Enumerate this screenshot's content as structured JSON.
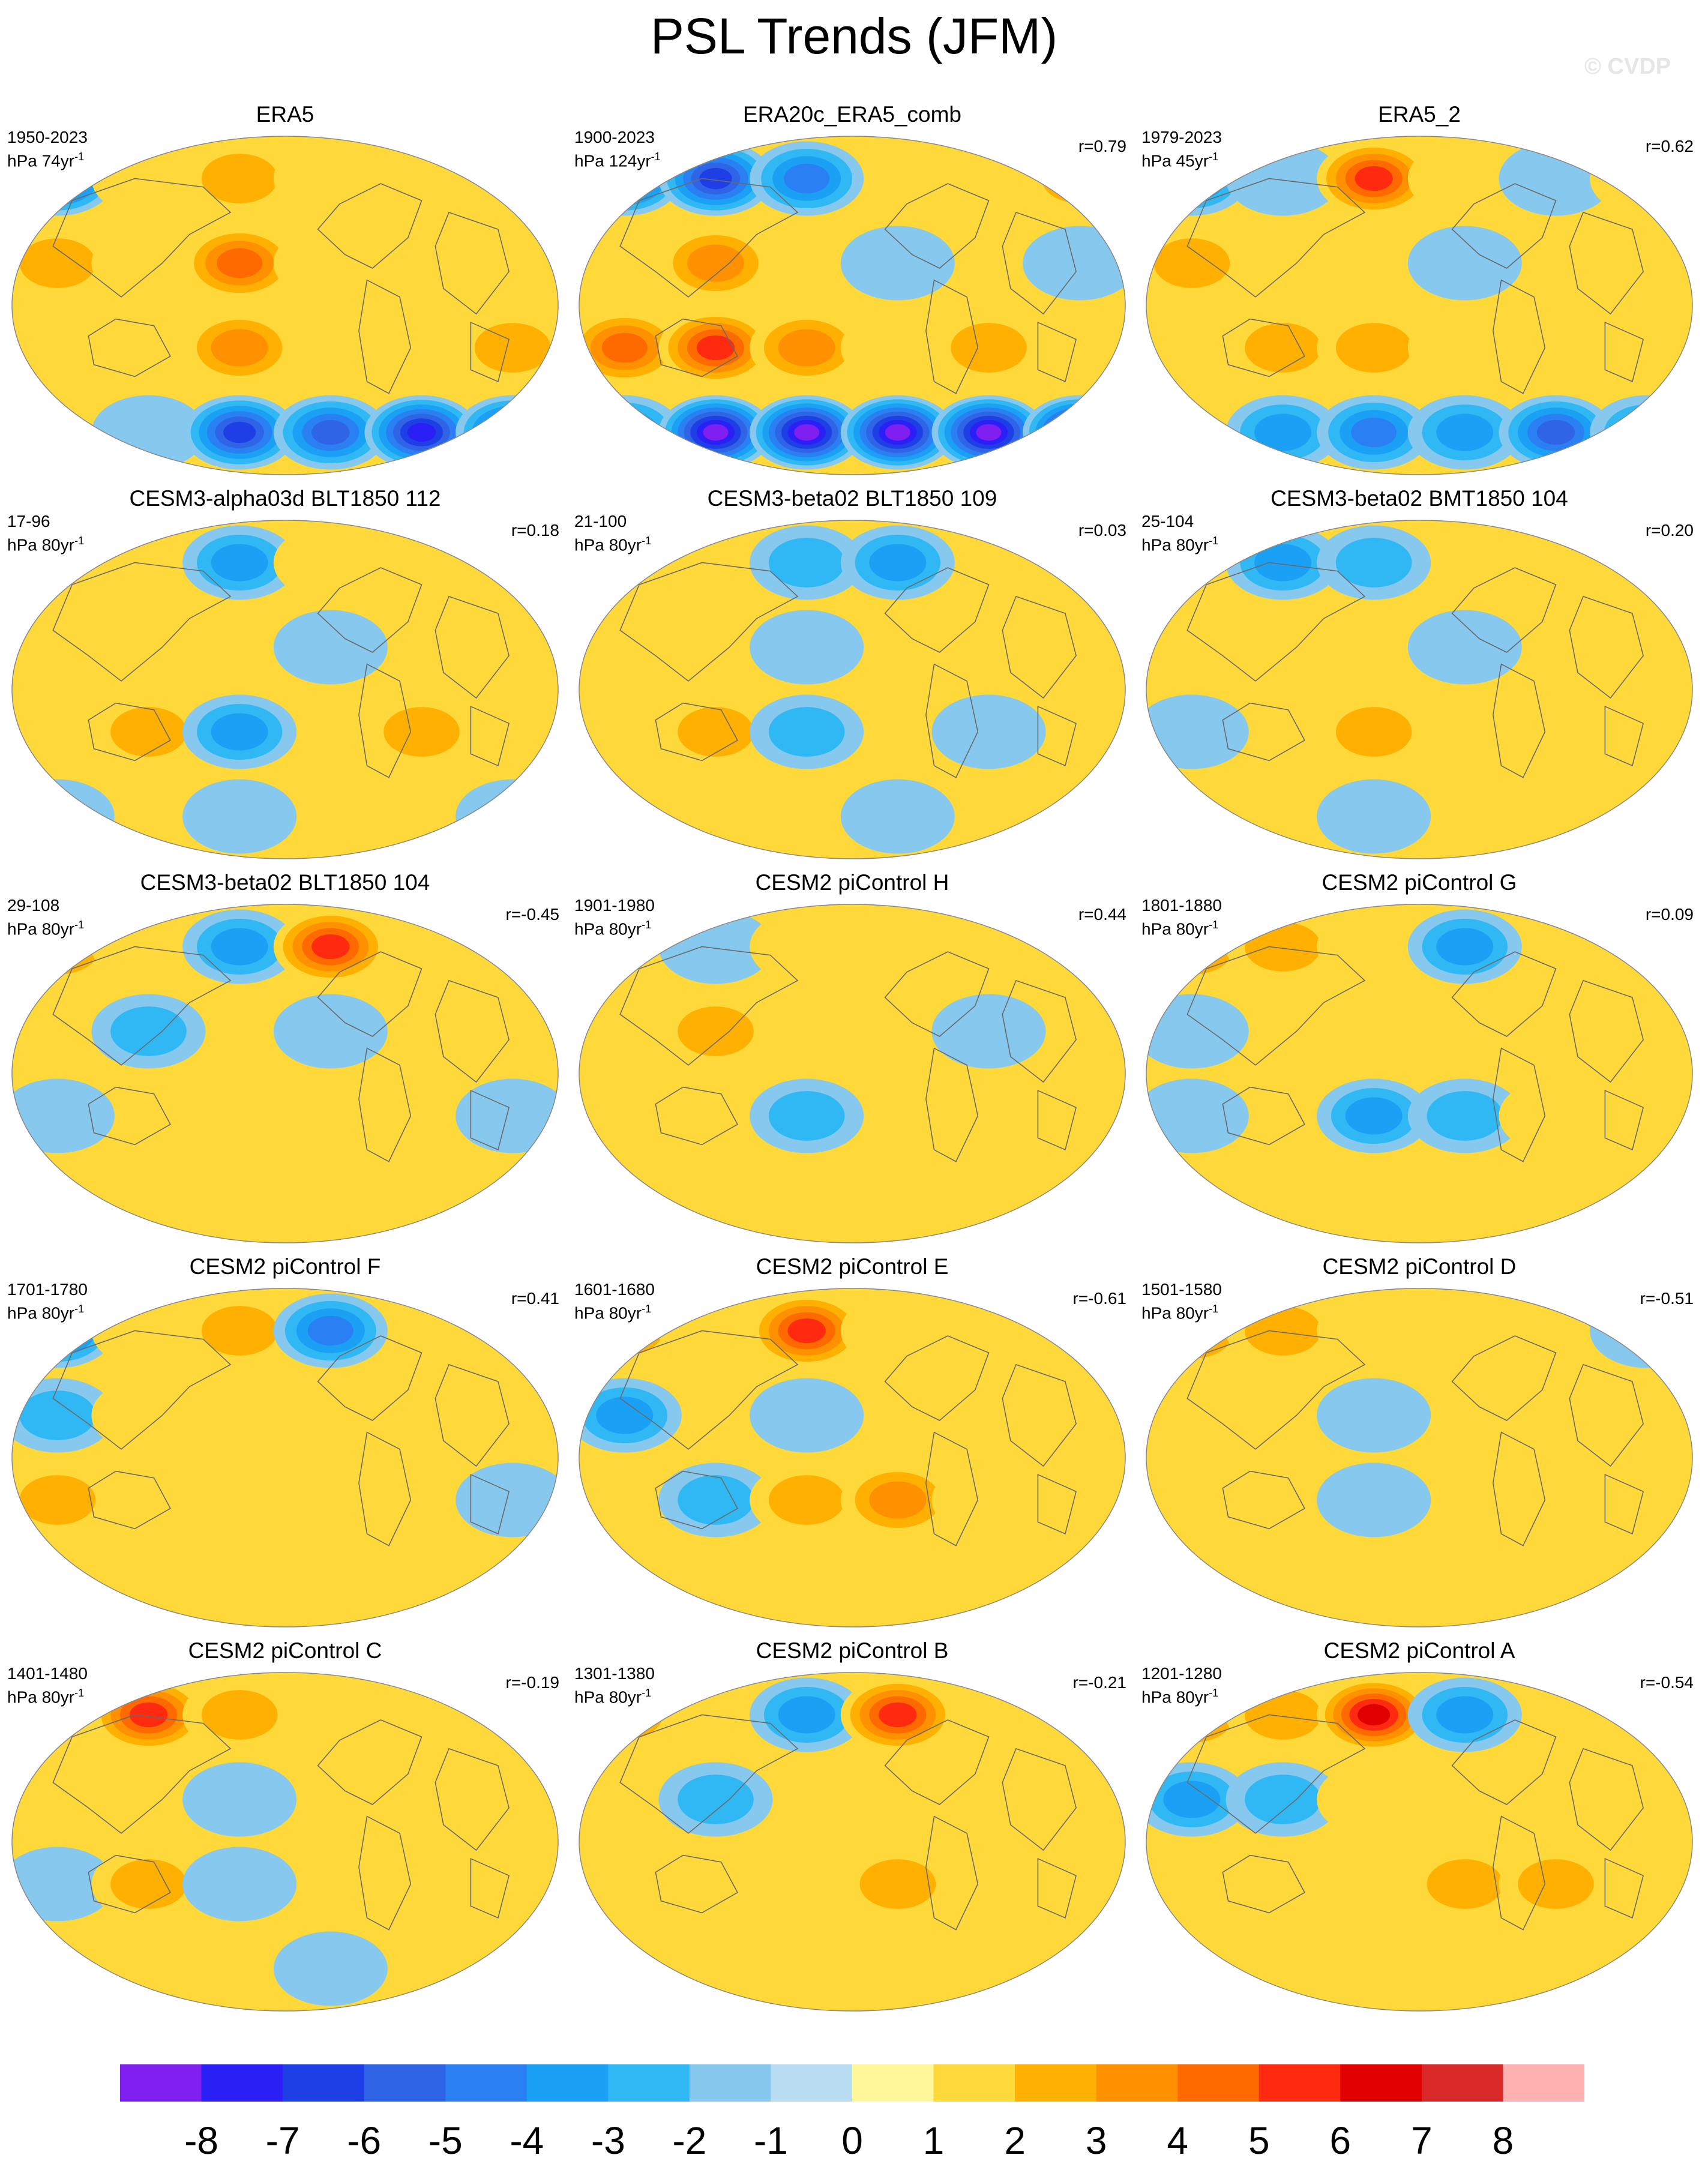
{
  "title": "PSL Trends (JFM)",
  "watermark": "© CVDP",
  "panels": [
    {
      "title": "ERA5",
      "period": "1950-2023",
      "units": "hPa 74yr",
      "units_sup": "-1",
      "corr": "",
      "pattern": [
        -6,
        1,
        2,
        1,
        0,
        1,
        2,
        1,
        4,
        1,
        0,
        1,
        0,
        0,
        3,
        0,
        1,
        2,
        0,
        -1,
        -6,
        -5,
        -7,
        -6
      ]
    },
    {
      "title": "ERA20c_ERA5_comb",
      "period": "1900-2023",
      "units": "hPa 124yr",
      "units_sup": "-1",
      "corr": "r=0.79",
      "pattern": [
        -6,
        -6,
        -4,
        0,
        1,
        2,
        1,
        3,
        0,
        -1,
        0,
        -1,
        4,
        5,
        3,
        1,
        2,
        0,
        -4,
        -8,
        -8,
        -8,
        -8,
        -8
      ]
    },
    {
      "title": "ERA5_2",
      "period": "1979-2023",
      "units": "hPa 45yr",
      "units_sup": "-1",
      "corr": "r=0.62",
      "pattern": [
        -4,
        -1,
        5,
        1,
        -1,
        1,
        2,
        0,
        1,
        -1,
        0,
        1,
        0,
        2,
        2,
        1,
        0,
        0,
        1,
        -3,
        -4,
        -3,
        -5,
        -3
      ]
    },
    {
      "title": "CESM3-alpha03d BLT1850 112",
      "period": "17-96",
      "units": "hPa 80yr",
      "units_sup": "-1",
      "corr": "r=0.18",
      "pattern": [
        1,
        0,
        -3,
        1,
        0,
        1,
        0,
        1,
        0,
        -1,
        0,
        1,
        0,
        2,
        -3,
        0,
        2,
        0,
        -1,
        0,
        -1,
        0,
        0,
        -1
      ]
    },
    {
      "title": "CESM3-beta02 BLT1850 109",
      "period": "21-100",
      "units": "hPa 80yr",
      "units_sup": "-1",
      "corr": "r=0.03",
      "pattern": [
        1,
        0,
        -2,
        -3,
        0,
        0,
        1,
        0,
        -1,
        0,
        0,
        1,
        0,
        2,
        -2,
        0,
        -1,
        0,
        1,
        0,
        0,
        -1,
        0,
        0
      ]
    },
    {
      "title": "CESM3-beta02 BMT1850 104",
      "period": "25-104",
      "units": "hPa 80yr",
      "units_sup": "-1",
      "corr": "r=0.20",
      "pattern": [
        1,
        -3,
        -2,
        0,
        0,
        1,
        0,
        1,
        0,
        -1,
        0,
        1,
        -1,
        0,
        2,
        0,
        0,
        1,
        0,
        0,
        -1,
        0,
        1,
        0
      ]
    },
    {
      "title": "CESM3-beta02 BLT1850 104",
      "period": "29-108",
      "units": "hPa 80yr",
      "units_sup": "-1",
      "corr": "r=-0.45",
      "pattern": [
        3,
        1,
        -3,
        5,
        0,
        0,
        0,
        -2,
        0,
        -1,
        0,
        1,
        -1,
        0,
        1,
        0,
        0,
        -1,
        0,
        0,
        1,
        0,
        0,
        0
      ]
    },
    {
      "title": "CESM2 piControl H",
      "period": "1901-1980",
      "units": "hPa 80yr",
      "units_sup": "-1",
      "corr": "r=0.44",
      "pattern": [
        0,
        -1,
        1,
        0,
        0,
        1,
        0,
        2,
        0,
        0,
        -1,
        0,
        1,
        0,
        -2,
        0,
        1,
        0,
        0,
        0,
        0,
        1,
        0,
        0
      ]
    },
    {
      "title": "CESM2 piControl G",
      "period": "1801-1880",
      "units": "hPa 80yr",
      "units_sup": "-1",
      "corr": "r=0.09",
      "pattern": [
        3,
        2,
        1,
        -3,
        0,
        0,
        -1,
        0,
        0,
        0,
        1,
        0,
        -1,
        0,
        -3,
        -2,
        1,
        0,
        1,
        0,
        0,
        0,
        0,
        0
      ]
    },
    {
      "title": "CESM2 piControl F",
      "period": "1701-1780",
      "units": "hPa 80yr",
      "units_sup": "-1",
      "corr": "r=0.41",
      "pattern": [
        -5,
        1,
        2,
        -4,
        0,
        0,
        -2,
        1,
        0,
        0,
        1,
        0,
        2,
        0,
        1,
        0,
        0,
        -1,
        0,
        0,
        0,
        1,
        0,
        0
      ]
    },
    {
      "title": "CESM2 piControl E",
      "period": "1601-1680",
      "units": "hPa 80yr",
      "units_sup": "-1",
      "corr": "r=-0.61",
      "pattern": [
        2,
        1,
        5,
        1,
        0,
        0,
        -3,
        0,
        -1,
        0,
        1,
        0,
        0,
        -2,
        2,
        3,
        1,
        0,
        0,
        0,
        0,
        1,
        0,
        0
      ]
    },
    {
      "title": "CESM2 piControl D",
      "period": "1501-1580",
      "units": "hPa 80yr",
      "units_sup": "-1",
      "corr": "r=-0.51",
      "pattern": [
        3,
        2,
        1,
        0,
        0,
        -1,
        0,
        0,
        -1,
        0,
        1,
        0,
        0,
        0,
        -1,
        0,
        1,
        0,
        0,
        0,
        0,
        0,
        0,
        0
      ]
    },
    {
      "title": "CESM2 piControl C",
      "period": "1401-1480",
      "units": "hPa 80yr",
      "units_sup": "-1",
      "corr": "r=-0.19",
      "pattern": [
        0,
        5,
        2,
        0,
        0,
        1,
        0,
        0,
        -1,
        0,
        0,
        0,
        -1,
        2,
        -1,
        0,
        0,
        0,
        0,
        0,
        0,
        -1,
        0,
        0
      ]
    },
    {
      "title": "CESM2 piControl B",
      "period": "1301-1380",
      "units": "hPa 80yr",
      "units_sup": "-1",
      "corr": "r=-0.21",
      "pattern": [
        2,
        0,
        -3,
        5,
        0,
        0,
        0,
        -2,
        0,
        0,
        1,
        0,
        0,
        1,
        0,
        2,
        0,
        0,
        0,
        0,
        1,
        0,
        0,
        0
      ]
    },
    {
      "title": "CESM2 piControl A",
      "period": "1201-1280",
      "units": "hPa 80yr",
      "units_sup": "-1",
      "corr": "r=-0.54",
      "pattern": [
        3,
        2,
        6,
        -3,
        0,
        0,
        -3,
        -2,
        1,
        0,
        0,
        0,
        0,
        0,
        0,
        2,
        2,
        0,
        0,
        0,
        0,
        0,
        0,
        0
      ]
    }
  ],
  "colorbar": {
    "labels": [
      "-8",
      "-7",
      "-6",
      "-5",
      "-4",
      "-3",
      "-2",
      "-1",
      "0",
      "1",
      "2",
      "3",
      "4",
      "5",
      "6",
      "7",
      "8"
    ],
    "colors": [
      "#7f1ff0",
      "#2a1ff5",
      "#1f3fe6",
      "#2f64e6",
      "#2a80f2",
      "#1aa0f5",
      "#30b8f5",
      "#86c8ee",
      "#b8dcf2",
      "#fff799",
      "#ffd93a",
      "#ffb000",
      "#ff9000",
      "#ff6a00",
      "#ff2a10",
      "#e00000",
      "#d82828",
      "#ffb0b0"
    ]
  }
}
